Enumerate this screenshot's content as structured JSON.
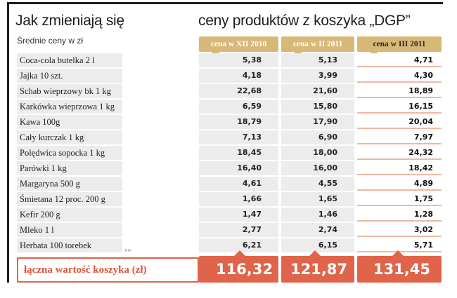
{
  "title_left": "Jak zmieniają się",
  "title_right": "ceny produktów z koszyka „DGP”",
  "subtitle": "Średnie ceny w zł",
  "columns": [
    "cena w XII 2010",
    "cena w II 2011",
    "cena w III 2011"
  ],
  "rows": [
    {
      "label": "Coca-cola butelka 2 l",
      "v": [
        "5,38",
        "5,13",
        "4,71"
      ]
    },
    {
      "label": "Jajka 10 szt.",
      "v": [
        "4,18",
        "3,99",
        "4,30"
      ]
    },
    {
      "label": "Schab wieprzowy bk 1 kg",
      "v": [
        "22,68",
        "21,60",
        "18,89"
      ]
    },
    {
      "label": "Karkówka wieprzowa 1 kg",
      "v": [
        "6,59",
        "15,80",
        "16,15"
      ]
    },
    {
      "label": "Kawa 100g",
      "v": [
        "18,79",
        "17,90",
        "20,04"
      ]
    },
    {
      "label": "Cały kurczak 1 kg",
      "v": [
        "7,13",
        "6,90",
        "7,97"
      ]
    },
    {
      "label": "Polędwica sopocka 1 kg",
      "v": [
        "18,45",
        "18,00",
        "24,32"
      ]
    },
    {
      "label": "Parówki 1 kg",
      "v": [
        "16,40",
        "16,00",
        "18,42"
      ]
    },
    {
      "label": "Margaryna  500 g",
      "v": [
        "4,61",
        "4,55",
        "4,89"
      ]
    },
    {
      "label": "Śmietana 12 proc. 200 g",
      "v": [
        "1,66",
        "1,65",
        "1,75"
      ]
    },
    {
      "label": "Kefir 200 g",
      "v": [
        "1,47",
        "1,46",
        "1,28"
      ]
    },
    {
      "label": "Mleko 1 l",
      "v": [
        "2,77",
        "2,74",
        "3,02"
      ]
    },
    {
      "label": "Herbata  100 torebek",
      "v": [
        "6,21",
        "6,15",
        "5,71"
      ]
    }
  ],
  "credit": "RM",
  "total": {
    "label": "łączna wartość koszyka (zł)",
    "v": [
      "116,32",
      "121,87",
      "131,45"
    ]
  },
  "colors": {
    "header": "#d8b876",
    "accent": "#e0644a",
    "row_bg": "#ececec",
    "highlight_line": "#f0b8a2"
  },
  "chart_data": {
    "type": "table",
    "title": "Jak zmieniają się ceny produktów z koszyka „DGP”",
    "subtitle": "Średnie ceny w zł",
    "categories": [
      "Coca-cola butelka 2 l",
      "Jajka 10 szt.",
      "Schab wieprzowy bk 1 kg",
      "Karkówka wieprzowa 1 kg",
      "Kawa 100g",
      "Cały kurczak 1 kg",
      "Polędwica sopocka 1 kg",
      "Parówki 1 kg",
      "Margaryna 500 g",
      "Śmietana 12 proc. 200 g",
      "Kefir 200 g",
      "Mleko 1 l",
      "Herbata 100 torebek"
    ],
    "series": [
      {
        "name": "cena w XII 2010",
        "values": [
          5.38,
          4.18,
          22.68,
          6.59,
          18.79,
          7.13,
          18.45,
          16.4,
          4.61,
          1.66,
          1.47,
          2.77,
          6.21
        ],
        "total": 116.32
      },
      {
        "name": "cena w II 2011",
        "values": [
          5.13,
          3.99,
          21.6,
          15.8,
          17.9,
          6.9,
          18.0,
          16.0,
          4.55,
          1.65,
          1.46,
          2.74,
          6.15
        ],
        "total": 121.87
      },
      {
        "name": "cena w III 2011",
        "values": [
          4.71,
          4.3,
          18.89,
          16.15,
          20.04,
          7.97,
          24.32,
          18.42,
          4.89,
          1.75,
          1.28,
          3.02,
          5.71
        ],
        "total": 131.45
      }
    ],
    "total_label": "łączna wartość koszyka (zł)",
    "unit": "zł"
  }
}
